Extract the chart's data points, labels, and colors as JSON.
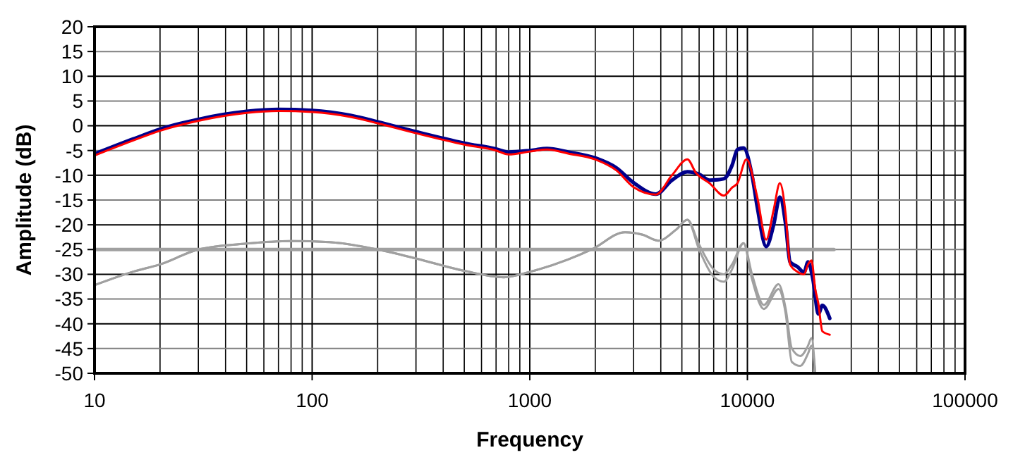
{
  "chart_data": {
    "type": "line",
    "xlabel": "Frequency",
    "ylabel": "Amplitude (dB)",
    "log": "x",
    "grid": true,
    "xlim": [
      10,
      100000
    ],
    "xticks": [
      10,
      100,
      1000,
      10000,
      100000
    ],
    "ylim": [
      -50,
      20
    ],
    "yticks": [
      20,
      15,
      10,
      5,
      0,
      -5,
      -10,
      -15,
      -20,
      -25,
      -30,
      -35,
      -40,
      -45,
      -50
    ],
    "series": [
      {
        "color": "#a0a0a0",
        "x": [
          10,
          25000
        ],
        "values": [
          -25,
          -25
        ]
      },
      {
        "color": "#a0a0a0",
        "x": [
          10,
          15,
          20,
          30,
          50,
          80,
          120,
          200,
          300,
          500,
          760,
          1000,
          1500,
          1940,
          2740,
          3300,
          3900,
          4700,
          5300,
          6000,
          7000,
          7800,
          8500,
          9600,
          10500,
          11900,
          13900,
          15000,
          16000,
          17500,
          19000,
          19700,
          20500
        ],
        "values": [
          -32.2,
          -29.5,
          -28,
          -25,
          -23.8,
          -23.3,
          -23.5,
          -25,
          -26.8,
          -29.3,
          -30.6,
          -29.5,
          -27,
          -24.9,
          -21.5,
          -22,
          -23.2,
          -21,
          -19,
          -24,
          -29,
          -30,
          -28,
          -23.7,
          -30,
          -36.2,
          -32,
          -37,
          -45,
          -46.5,
          -44.4,
          -42.9,
          -50
        ]
      },
      {
        "color": "#a0a0a0",
        "x": [
          10,
          15,
          20,
          30,
          50,
          80,
          120,
          200,
          300,
          500,
          760,
          1000,
          1500,
          1940,
          2740,
          3300,
          3900,
          4700,
          5300,
          6000,
          7000,
          7800,
          8500,
          9600,
          10500,
          11900,
          13900,
          15000,
          16000,
          17500,
          19000,
          19700,
          20500
        ],
        "values": [
          -32.2,
          -29.5,
          -28,
          -25,
          -23.8,
          -23.3,
          -23.5,
          -25,
          -26.8,
          -29.3,
          -30.6,
          -29.5,
          -27,
          -24.9,
          -21.5,
          -22,
          -23.2,
          -21,
          -19,
          -25,
          -30.5,
          -31.5,
          -29,
          -23.7,
          -31,
          -37,
          -33,
          -38,
          -47.7,
          -48.5,
          -46,
          -44.4,
          -50
        ]
      },
      {
        "color": "#00008b",
        "x": [
          10,
          15,
          20,
          30,
          50,
          70,
          100,
          150,
          200,
          300,
          500,
          700,
          800,
          1000,
          1200,
          1500,
          2000,
          2500,
          3000,
          3800,
          4500,
          5300,
          6000,
          6700,
          7800,
          8500,
          9000,
          9600,
          10500,
          11100,
          12200,
          13200,
          14100,
          15000,
          15700,
          17000,
          18200,
          19000,
          20000,
          21200,
          22100,
          23900
        ],
        "values": [
          -5.7,
          -2.7,
          -0.7,
          1.3,
          2.9,
          3.3,
          3.1,
          2.1,
          0.8,
          -1.2,
          -3.5,
          -4.7,
          -5.3,
          -5,
          -4.6,
          -5.3,
          -6.5,
          -8.5,
          -11.5,
          -13.8,
          -11,
          -9.3,
          -9.8,
          -11,
          -10.7,
          -8,
          -4.8,
          -4.5,
          -10,
          -16.4,
          -24.4,
          -20,
          -14.4,
          -20,
          -27.5,
          -28.5,
          -29.6,
          -27.5,
          -31,
          -38,
          -36.3,
          -38.9
        ]
      },
      {
        "color": "#ff0000",
        "x": [
          10,
          15,
          20,
          30,
          50,
          70,
          100,
          150,
          200,
          300,
          500,
          700,
          800,
          1000,
          1200,
          1500,
          2000,
          2500,
          3000,
          3800,
          4500,
          5300,
          5800,
          6700,
          7800,
          8500,
          9000,
          9900,
          11100,
          12200,
          13200,
          14100,
          15000,
          15700,
          17000,
          18200,
          19000,
          19700,
          20500,
          21200,
          22100,
          23900
        ],
        "values": [
          -6,
          -3,
          -1,
          1,
          2.6,
          3,
          2.8,
          1.8,
          0.5,
          -1.5,
          -3.8,
          -5,
          -5.8,
          -5.2,
          -4.8,
          -5.6,
          -6.8,
          -9,
          -12.4,
          -13.9,
          -10,
          -6.8,
          -9.5,
          -11.6,
          -14.1,
          -12.5,
          -11.6,
          -6.8,
          -14.4,
          -23,
          -17,
          -11.6,
          -18,
          -28,
          -29.5,
          -30,
          -28,
          -27.2,
          -33,
          -36,
          -41.5,
          -42.2
        ]
      }
    ]
  }
}
